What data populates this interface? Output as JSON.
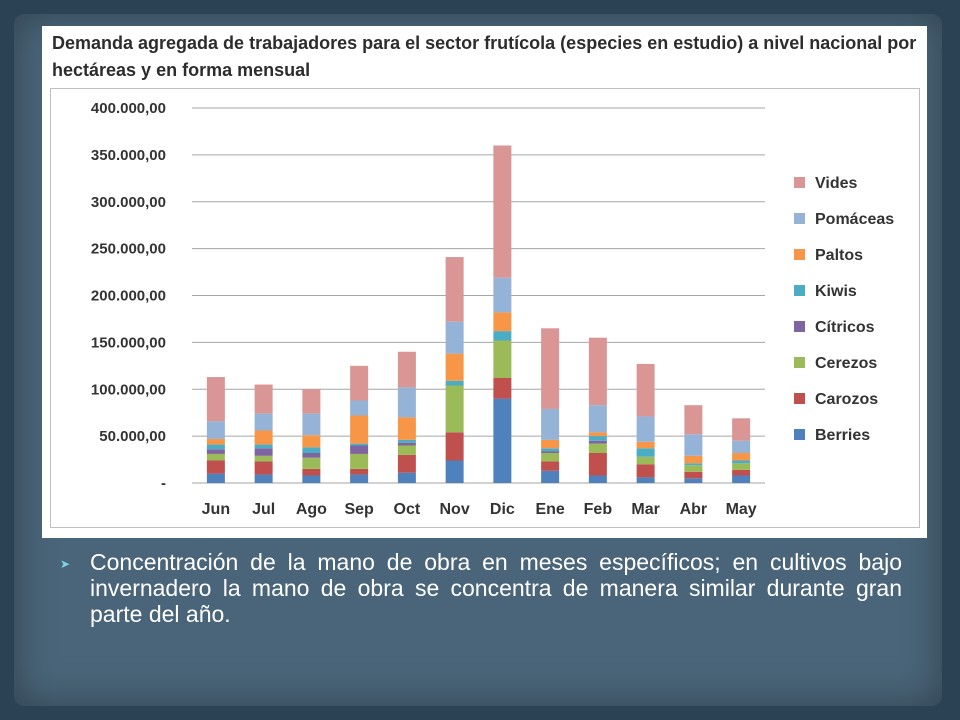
{
  "slide": {
    "bullet_icon": "arrow-bullet-icon",
    "bullet_text": "Concentración de la mano de obra en meses específicos; en cultivos bajo invernadero  la mano de obra se concentra de manera similar durante gran parte del año."
  },
  "chart_data": {
    "type": "bar",
    "stacked": true,
    "title": "Demanda agregada de trabajadores para el sector frutícola (especies en estudio) a nivel nacional por hectáreas y en forma mensual",
    "xlabel": "",
    "ylabel": "",
    "ylim": [
      0,
      400000
    ],
    "yticks": [
      {
        "value": 0,
        "label": "-"
      },
      {
        "value": 50000,
        "label": "50.000,00"
      },
      {
        "value": 100000,
        "label": "100.000,00"
      },
      {
        "value": 150000,
        "label": "150.000,00"
      },
      {
        "value": 200000,
        "label": "200.000,00"
      },
      {
        "value": 250000,
        "label": "250.000,00"
      },
      {
        "value": 300000,
        "label": "300.000,00"
      },
      {
        "value": 350000,
        "label": "350.000,00"
      },
      {
        "value": 400000,
        "label": "400.000,00"
      }
    ],
    "grid": true,
    "legend_position": "right",
    "categories": [
      "Jun",
      "Jul",
      "Ago",
      "Sep",
      "Oct",
      "Nov",
      "Dic",
      "Ene",
      "Feb",
      "Mar",
      "Abr",
      "May"
    ],
    "series": [
      {
        "name": "Berries",
        "color": "#4f81bd",
        "values": [
          10000,
          9000,
          8000,
          9000,
          11000,
          24000,
          90000,
          13000,
          8000,
          6000,
          5000,
          8000
        ]
      },
      {
        "name": "Carozos",
        "color": "#c0504d",
        "values": [
          14000,
          14000,
          7000,
          6000,
          19000,
          30000,
          22000,
          10000,
          24000,
          14000,
          7000,
          6000
        ]
      },
      {
        "name": "Cerezos",
        "color": "#9bbb59",
        "values": [
          7000,
          6000,
          12000,
          16000,
          10000,
          50000,
          40000,
          9000,
          10000,
          8000,
          7000,
          7000
        ]
      },
      {
        "name": "Cítricos",
        "color": "#8064a2",
        "values": [
          5000,
          8000,
          5000,
          9000,
          3000,
          0,
          0,
          2000,
          3000,
          0,
          0,
          0
        ]
      },
      {
        "name": "Kiwis",
        "color": "#4bacc6",
        "values": [
          5000,
          4000,
          6000,
          2000,
          3000,
          5000,
          10000,
          3000,
          5000,
          9000,
          2000,
          3000
        ]
      },
      {
        "name": "Paltos",
        "color": "#f79646",
        "values": [
          6000,
          15000,
          13000,
          30000,
          24000,
          29000,
          20000,
          9000,
          4000,
          7000,
          8000,
          8000
        ]
      },
      {
        "name": "Pomáceas",
        "color": "#95b3d7",
        "values": [
          19000,
          18000,
          23000,
          16000,
          32000,
          34000,
          37000,
          33000,
          29000,
          27000,
          23000,
          13000
        ]
      },
      {
        "name": "Vides",
        "color": "#d99694",
        "values": [
          47000,
          31000,
          26000,
          37000,
          38000,
          69000,
          141000,
          86000,
          72000,
          56000,
          31000,
          24000
        ]
      }
    ]
  }
}
